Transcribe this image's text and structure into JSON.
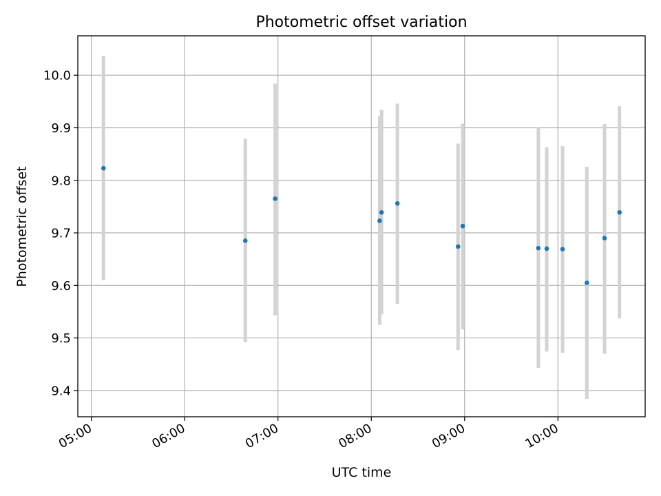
{
  "chart_data": {
    "type": "scatter",
    "title": "Photometric offset variation",
    "xlabel": "UTC time",
    "ylabel": "Photometric offset",
    "x_unit": "hours UTC",
    "xlim": [
      4.855,
      10.935
    ],
    "ylim": [
      9.35,
      10.075
    ],
    "x_ticks": [
      {
        "value": 5,
        "label": "05:00"
      },
      {
        "value": 6,
        "label": "06:00"
      },
      {
        "value": 7,
        "label": "07:00"
      },
      {
        "value": 8,
        "label": "08:00"
      },
      {
        "value": 9,
        "label": "09:00"
      },
      {
        "value": 10,
        "label": "10:00"
      }
    ],
    "y_ticks": [
      {
        "value": 9.4,
        "label": "9.4"
      },
      {
        "value": 9.5,
        "label": "9.5"
      },
      {
        "value": 9.6,
        "label": "9.6"
      },
      {
        "value": 9.7,
        "label": "9.7"
      },
      {
        "value": 9.8,
        "label": "9.8"
      },
      {
        "value": 9.9,
        "label": "9.9"
      },
      {
        "value": 10.0,
        "label": "10.0"
      }
    ],
    "grid": true,
    "marker_color": "#1f77b4",
    "errorbar_color": "#d3d3d3",
    "points": [
      {
        "time": "05:08",
        "x": 5.13,
        "y": 9.823,
        "yerr_low": 9.61,
        "yerr_high": 10.037
      },
      {
        "time": "06:39",
        "x": 6.65,
        "y": 9.685,
        "yerr_low": 9.492,
        "yerr_high": 9.879
      },
      {
        "time": "06:58",
        "x": 6.97,
        "y": 9.765,
        "yerr_low": 9.543,
        "yerr_high": 9.984
      },
      {
        "time": "08:05",
        "x": 8.09,
        "y": 9.723,
        "yerr_low": 9.525,
        "yerr_high": 9.922
      },
      {
        "time": "08:07",
        "x": 8.11,
        "y": 9.739,
        "yerr_low": 9.545,
        "yerr_high": 9.934
      },
      {
        "time": "08:17",
        "x": 8.28,
        "y": 9.756,
        "yerr_low": 9.565,
        "yerr_high": 9.946
      },
      {
        "time": "08:56",
        "x": 8.93,
        "y": 9.674,
        "yerr_low": 9.477,
        "yerr_high": 9.87
      },
      {
        "time": "08:59",
        "x": 8.98,
        "y": 9.713,
        "yerr_low": 9.516,
        "yerr_high": 9.908
      },
      {
        "time": "09:47",
        "x": 9.79,
        "y": 9.671,
        "yerr_low": 9.443,
        "yerr_high": 9.9
      },
      {
        "time": "09:53",
        "x": 9.88,
        "y": 9.67,
        "yerr_low": 9.474,
        "yerr_high": 9.863
      },
      {
        "time": "10:03",
        "x": 10.05,
        "y": 9.669,
        "yerr_low": 9.472,
        "yerr_high": 9.865
      },
      {
        "time": "10:18",
        "x": 10.31,
        "y": 9.605,
        "yerr_low": 9.384,
        "yerr_high": 9.826
      },
      {
        "time": "10:30",
        "x": 10.5,
        "y": 9.69,
        "yerr_low": 9.47,
        "yerr_high": 9.907
      },
      {
        "time": "10:39",
        "x": 10.66,
        "y": 9.739,
        "yerr_low": 9.537,
        "yerr_high": 9.941
      }
    ]
  }
}
